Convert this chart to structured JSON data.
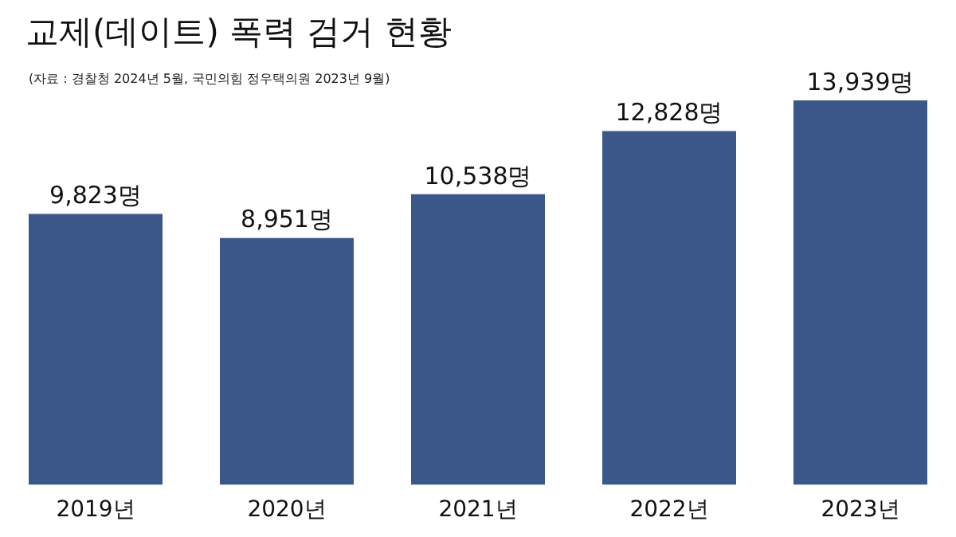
{
  "chart_data": {
    "type": "bar",
    "title": "교제(데이트) 폭력 검거 현황",
    "subtitle": "(자료 : 경찰청 2024년 5월, 국민의힘 정우택의원 2023년 9월)",
    "categories": [
      "2019년",
      "2020년",
      "2021년",
      "2022년",
      "2023년"
    ],
    "values": [
      9823,
      8951,
      10538,
      12828,
      13939
    ],
    "value_labels": [
      "9,823명",
      "8,951명",
      "10,538명",
      "12,828명",
      "13,939명"
    ],
    "color": "#3b5688",
    "grid": false,
    "legend": false
  }
}
